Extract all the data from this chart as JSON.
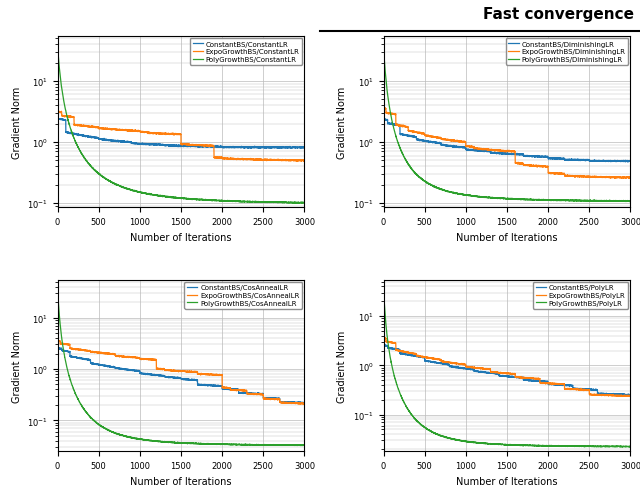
{
  "subplot_legends": [
    [
      "ConstantBS/ConstantLR",
      "ExpoGrowthBS/ConstantLR",
      "PolyGrowthBS/ConstantLR"
    ],
    [
      "ConstantBS/DiminishingLR",
      "ExpoGrowthBS/DiminishingLR",
      "PolyGrowthBS/DiminishingLR"
    ],
    [
      "ConstantBS/CosAnnealLR",
      "ExpoGrowthBS/CosAnnealLR",
      "PolyGrowthBS/CosAnnealLR"
    ],
    [
      "ConstantBS/PolyLR",
      "ExpoGrowthBS/PolyLR",
      "PolyGrowthBS/PolyLR"
    ]
  ],
  "colors": [
    "#1f77b4",
    "#ff7f0e",
    "#2ca02c"
  ],
  "xlabel": "Number of Iterations",
  "ylabel": "Gradient Norm",
  "xlim": [
    0,
    3000
  ],
  "n_iters": 3000,
  "background_color": "#ffffff",
  "grid_color": "#bbbbbb",
  "title_text": "Fast convergence"
}
